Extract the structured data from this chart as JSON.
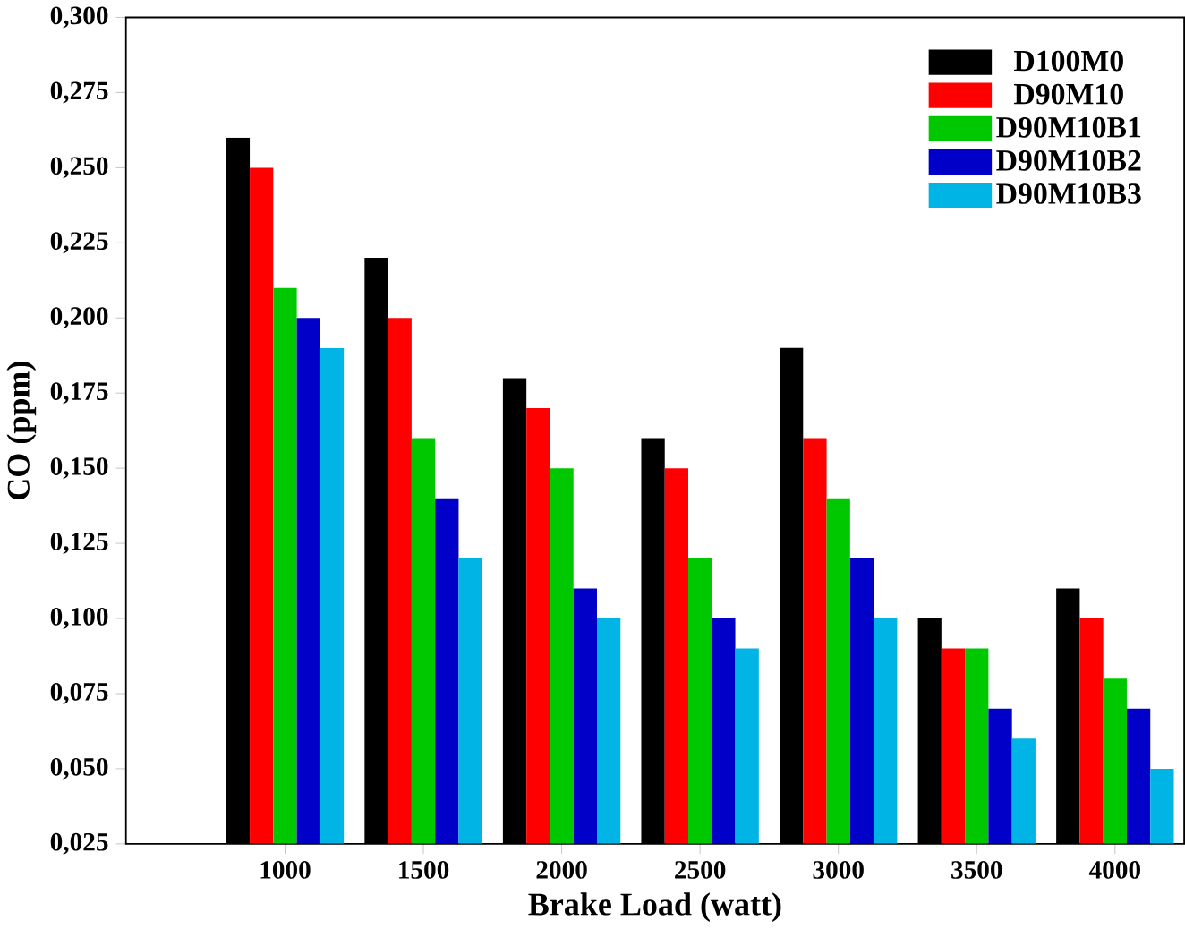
{
  "chart_data": {
    "type": "bar",
    "xlabel": "Brake Load (watt)",
    "ylabel": "CO (ppm)",
    "categories": [
      "1000",
      "1500",
      "2000",
      "2500",
      "3000",
      "3500",
      "4000"
    ],
    "series": [
      {
        "name": "D100M0",
        "color": "#000000",
        "values": [
          0.26,
          0.22,
          0.18,
          0.16,
          0.19,
          0.1,
          0.11
        ]
      },
      {
        "name": "D90M10",
        "color": "#ff0000",
        "values": [
          0.25,
          0.2,
          0.17,
          0.15,
          0.16,
          0.09,
          0.1
        ]
      },
      {
        "name": "D90M10B1",
        "color": "#00c800",
        "values": [
          0.21,
          0.16,
          0.15,
          0.12,
          0.14,
          0.09,
          0.08
        ]
      },
      {
        "name": "D90M10B2",
        "color": "#0000c8",
        "values": [
          0.2,
          0.14,
          0.11,
          0.1,
          0.12,
          0.07,
          0.07
        ]
      },
      {
        "name": "D90M10B3",
        "color": "#00b4e6",
        "values": [
          0.19,
          0.12,
          0.1,
          0.09,
          0.1,
          0.06,
          0.05
        ]
      }
    ],
    "ylim": [
      0.025,
      0.3
    ],
    "yticks": [
      {
        "value": 0.025,
        "label": "0,025"
      },
      {
        "value": 0.05,
        "label": "0,050"
      },
      {
        "value": 0.075,
        "label": "0,075"
      },
      {
        "value": 0.1,
        "label": "0,100"
      },
      {
        "value": 0.125,
        "label": "0,125"
      },
      {
        "value": 0.15,
        "label": "0,150"
      },
      {
        "value": 0.175,
        "label": "0,175"
      },
      {
        "value": 0.2,
        "label": "0,200"
      },
      {
        "value": 0.225,
        "label": "0,225"
      },
      {
        "value": 0.25,
        "label": "0,250"
      },
      {
        "value": 0.275,
        "label": "0,275"
      },
      {
        "value": 0.3,
        "label": "0,300"
      }
    ],
    "legend": "top right",
    "grid": false
  }
}
